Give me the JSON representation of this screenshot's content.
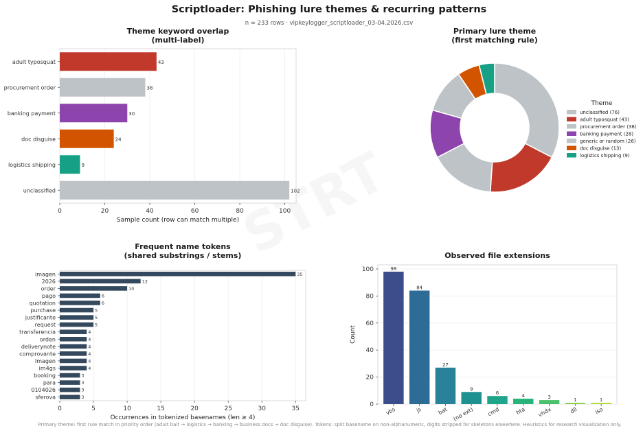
{
  "header": {
    "title": "Scriptloader: Phishing lure themes & recurring patterns",
    "subtitle": "n = 233 rows  ·  vipkeylogger_scriptloader_03-04.2026.csv",
    "watermark": "STRT"
  },
  "footer": {
    "note": "Primary theme: first rule match in priority order (adult bait → logistics → banking → business docs → doc disguise). Tokens: split basename on non-alphanumeric, digits stripped for skeletons elsewhere. Heuristics for research visualization only."
  },
  "chart_data": [
    {
      "id": "theme_overlap",
      "type": "bar",
      "orientation": "horizontal",
      "title": "Theme keyword overlap\n(multi-label)",
      "xlabel": "Sample count (row can match multiple)",
      "ylabel": "",
      "xlim": [
        0,
        105
      ],
      "xticks": [
        0,
        20,
        40,
        60,
        80,
        100
      ],
      "grid": true,
      "categories": [
        "adult typosquat",
        "procurement order",
        "banking payment",
        "doc disguise",
        "logistics shipping",
        "unclassified"
      ],
      "values": [
        43,
        38,
        30,
        24,
        9,
        102
      ],
      "colors": [
        "#c0392b",
        "#bdc3c7",
        "#8e44ad",
        "#d35400",
        "#16a085",
        "#bdc3c7"
      ],
      "data_labels": [
        "43",
        "38",
        "30",
        "24",
        "9",
        "102"
      ]
    },
    {
      "id": "primary_theme",
      "type": "pie",
      "donut": true,
      "title": "Primary lure theme\n(first matching rule)",
      "legend_title": "Theme",
      "legend_position": "right",
      "slices": [
        {
          "label": "unclassified (76)",
          "value": 76,
          "color": "#bdc3c7"
        },
        {
          "label": "adult typosquat (43)",
          "value": 43,
          "color": "#c0392b"
        },
        {
          "label": "procurement order (38)",
          "value": 38,
          "color": "#bdc3c7"
        },
        {
          "label": "banking payment (28)",
          "value": 28,
          "color": "#8e44ad"
        },
        {
          "label": "generic or random (26)",
          "value": 26,
          "color": "#bdc3c7"
        },
        {
          "label": "doc disguise (13)",
          "value": 13,
          "color": "#d35400"
        },
        {
          "label": "logistics shipping (9)",
          "value": 9,
          "color": "#16a085"
        }
      ]
    },
    {
      "id": "name_tokens",
      "type": "bar",
      "orientation": "horizontal",
      "title": "Frequent name tokens\n(shared substrings / stems)",
      "xlabel": "Occurrences in tokenized basenames (len ≥ 4)",
      "ylabel": "",
      "xlim": [
        0,
        36.5
      ],
      "xticks": [
        0,
        5,
        10,
        15,
        20,
        25,
        30,
        35
      ],
      "grid": true,
      "bar_color": "#34495e",
      "categories": [
        "imagen",
        "2026",
        "order",
        "pago",
        "quotation",
        "purchase",
        "justificante",
        "request",
        "transferencia",
        "orden",
        "deliverynote",
        "comprovante",
        "Imagen",
        "im4gs",
        "booking",
        "para",
        "0104026",
        "sferova"
      ],
      "values": [
        35,
        12,
        10,
        6,
        6,
        5,
        5,
        5,
        4,
        4,
        4,
        4,
        4,
        4,
        3,
        3,
        3,
        3
      ],
      "data_labels": [
        "35",
        "12",
        "10",
        "6",
        "6",
        "5",
        "5",
        "5",
        "4",
        "4",
        "4",
        "4",
        "4",
        "4",
        "3",
        "3",
        "3",
        "3"
      ]
    },
    {
      "id": "file_extensions",
      "type": "bar",
      "orientation": "vertical",
      "title": "Observed file extensions",
      "xlabel": "",
      "ylabel": "Count",
      "ylim": [
        0,
        100
      ],
      "yticks": [
        0,
        20,
        40,
        60,
        80,
        100
      ],
      "grid": true,
      "categories": [
        "vbs",
        "js",
        "bat",
        "(no ext)",
        "cmd",
        "hta",
        "vhdx",
        "dll",
        "iso"
      ],
      "values": [
        98,
        84,
        27,
        9,
        6,
        4,
        3,
        1,
        1
      ],
      "colors": [
        "#3b4d8a",
        "#2e6c98",
        "#27829a",
        "#1f9190",
        "#1ea58a",
        "#27b37a",
        "#4bc26a",
        "#8ad24c",
        "#b4dc38"
      ],
      "data_labels": [
        "98",
        "84",
        "27",
        "9",
        "6",
        "4",
        "3",
        "1",
        "1"
      ]
    }
  ]
}
